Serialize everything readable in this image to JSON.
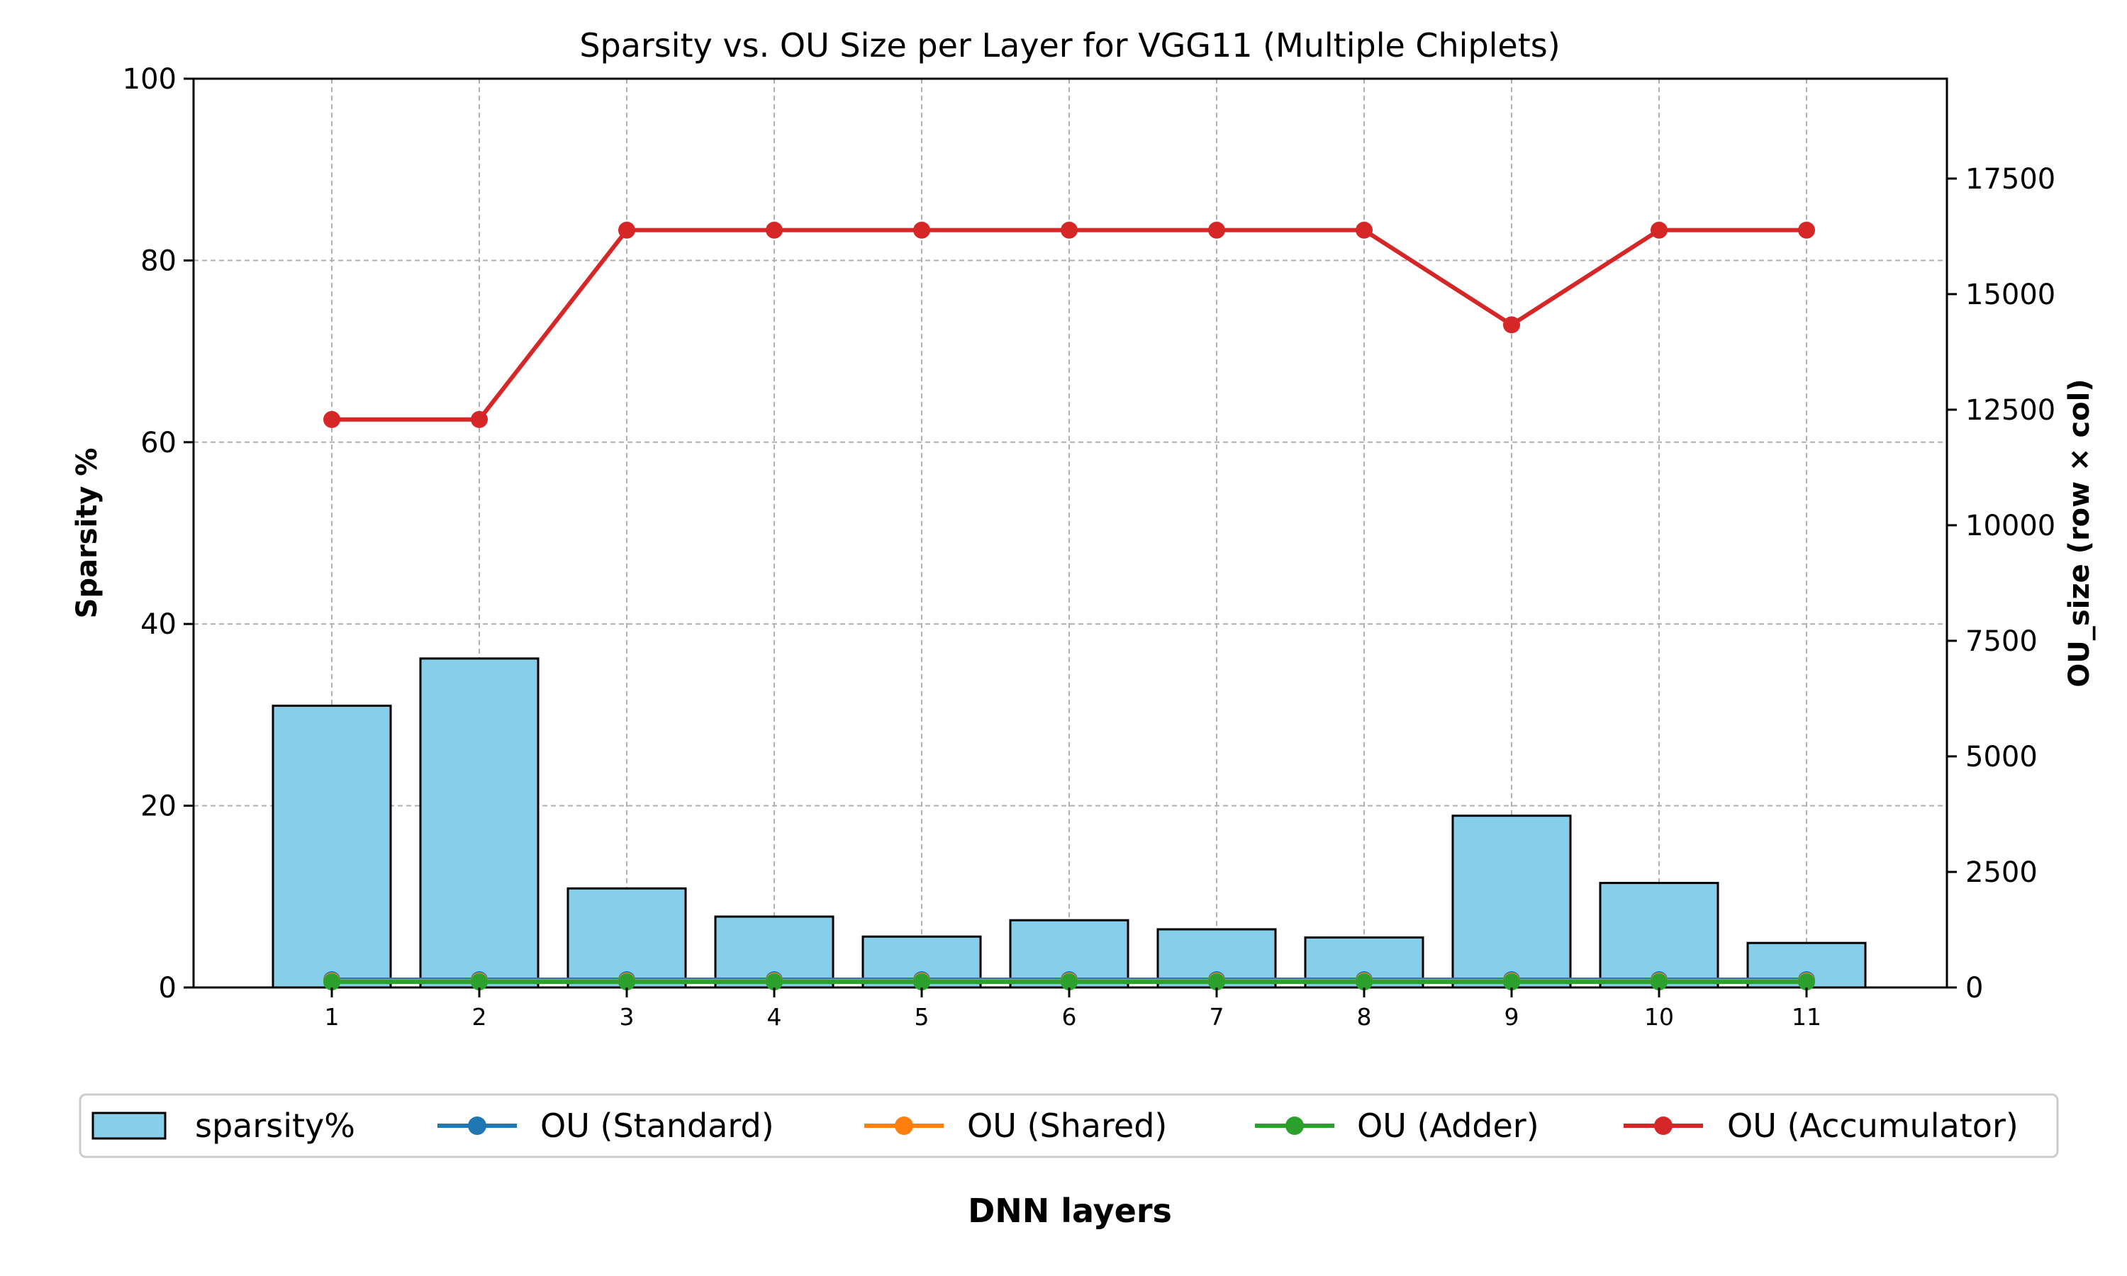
{
  "chart_data": {
    "type": "bar",
    "title": "Sparsity vs. OU Size per Layer for VGG11 (Multiple Chiplets)",
    "xlabel": "DNN layers",
    "ylabel": "Sparsity %",
    "y2label": "OU_size (row × col)",
    "categories": [
      "1",
      "2",
      "3",
      "4",
      "5",
      "6",
      "7",
      "8",
      "9",
      "10",
      "11"
    ],
    "ylim": [
      0,
      100
    ],
    "y2lim": [
      0,
      19660.8
    ],
    "yticks": [
      0,
      20,
      40,
      60,
      80,
      100
    ],
    "y2ticks": [
      0,
      2500,
      5000,
      7500,
      10000,
      12500,
      15000,
      17500
    ],
    "grid": true,
    "legend_position": "bottom-center",
    "bars": {
      "name": "sparsity%",
      "color": "#87CEEB",
      "edge_color": "#000000",
      "values": [
        31.0,
        36.2,
        10.9,
        7.8,
        5.6,
        7.4,
        6.4,
        5.5,
        18.9,
        11.5,
        4.9
      ]
    },
    "series": [
      {
        "name": "OU (Standard)",
        "color": "#1f77b4",
        "axis": "right",
        "values": [
          168,
          168,
          168,
          168,
          168,
          168,
          168,
          168,
          168,
          168,
          168
        ]
      },
      {
        "name": "OU (Shared)",
        "color": "#ff7f0e",
        "axis": "right",
        "values": [
          140,
          140,
          140,
          140,
          140,
          140,
          140,
          140,
          140,
          140,
          140
        ]
      },
      {
        "name": "OU (Adder)",
        "color": "#2ca02c",
        "axis": "right",
        "values": [
          120,
          120,
          120,
          120,
          120,
          120,
          120,
          120,
          120,
          120,
          120
        ]
      },
      {
        "name": "OU (Accumulator)",
        "color": "#d62728",
        "axis": "right",
        "values": [
          12288,
          12288,
          16384,
          16384,
          16384,
          16384,
          16384,
          16384,
          14336,
          16384,
          16384
        ]
      }
    ]
  }
}
